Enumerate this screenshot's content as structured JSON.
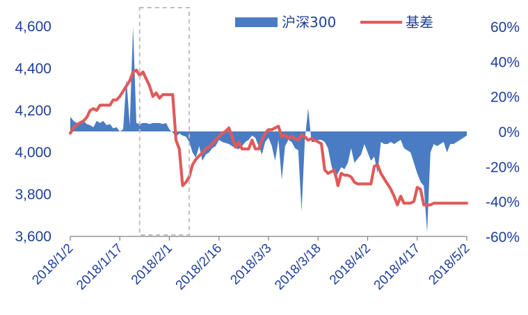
{
  "chart_data": {
    "type": "area+line",
    "title": "",
    "xlabel": "",
    "ylabel": "",
    "grid": false,
    "legend_position": "top-right",
    "x_tick_labels": [
      "2018/1/2",
      "2018/1/17",
      "2018/2/1",
      "2018/2/16",
      "2018/3/3",
      "2018/3/18",
      "2018/4/2",
      "2018/4/17",
      "2018/5/2"
    ],
    "left_axis": {
      "ylim": [
        3600,
        4600
      ],
      "ticks": [
        "3,600",
        "3,800",
        "4,000",
        "4,200",
        "4,400",
        "4,600"
      ]
    },
    "right_axis": {
      "ylim": [
        -60,
        60
      ],
      "unit": "%",
      "ticks": [
        "-60%",
        "-40%",
        "-20%",
        "0%",
        "20%",
        "40%",
        "60%"
      ]
    },
    "series": [
      {
        "name": "沪深300",
        "type": "area",
        "axis": "left",
        "color": "#4a7cc4",
        "baseline": 4100,
        "x": [
          0,
          1,
          2,
          3,
          4,
          5,
          6,
          7,
          8,
          9,
          10,
          11,
          12,
          13,
          14,
          15,
          16,
          17,
          18,
          19,
          20,
          21,
          22,
          23,
          24,
          25,
          26,
          27,
          28,
          29,
          30,
          31,
          32,
          33,
          34,
          35,
          36,
          37,
          38,
          39,
          40,
          41,
          42,
          43,
          44,
          45,
          46,
          47,
          48,
          49,
          50,
          51,
          52,
          53,
          54,
          55,
          56,
          57,
          58,
          59,
          60,
          61,
          62,
          63,
          64,
          65,
          66,
          67,
          68,
          69,
          70,
          71,
          72,
          73,
          74,
          75,
          76,
          77,
          78,
          79,
          80,
          81,
          82,
          83,
          84,
          85,
          86,
          87,
          88,
          89,
          90,
          91,
          92,
          93,
          94,
          95,
          96,
          97,
          98,
          99,
          100,
          101,
          102,
          103,
          104,
          105,
          106,
          107,
          108,
          109,
          110,
          111,
          112,
          113,
          114,
          115,
          116,
          117,
          118,
          119,
          120
        ],
        "values": [
          4170,
          4150,
          4140,
          4140,
          4150,
          4135,
          4130,
          4120,
          4150,
          4140,
          4150,
          4130,
          4135,
          4115,
          4120,
          4100,
          4110,
          4350,
          4130,
          4600,
          4140,
          4135,
          4140,
          4140,
          4135,
          4140,
          4140,
          4140,
          4135,
          4140,
          4110,
          4095,
          4075,
          4090,
          4080,
          4075,
          4050,
          4000,
          3975,
          4030,
          3960,
          3990,
          4000,
          4020,
          4030,
          4060,
          4050,
          4045,
          4040,
          4030,
          4020,
          4015,
          4030,
          4050,
          4060,
          4080,
          4070,
          4030,
          3990,
          4050,
          4070,
          4030,
          3960,
          4060,
          3870,
          4030,
          4060,
          4050,
          4020,
          4010,
          3720,
          4060,
          4210,
          4050,
          4050,
          4060,
          4060,
          4050,
          4020,
          3940,
          3880,
          3900,
          3930,
          3920,
          3950,
          4020,
          3950,
          3970,
          3990,
          4040,
          4000,
          3960,
          3980,
          3900,
          4050,
          4040,
          4040,
          4050,
          4040,
          4050,
          4060,
          4020,
          4010,
          4000,
          3950,
          3900,
          3860,
          3840,
          3620,
          4000,
          4040,
          4030,
          4040,
          4050,
          4000,
          4040,
          4040,
          4050,
          4060,
          4070,
          4080
        ]
      },
      {
        "name": "基差",
        "type": "line",
        "axis": "right",
        "color": "#e05a5a",
        "x": [
          0,
          1,
          2,
          3,
          4,
          5,
          6,
          7,
          8,
          9,
          10,
          11,
          12,
          13,
          14,
          15,
          16,
          17,
          18,
          19,
          20,
          21,
          22,
          23,
          24,
          25,
          26,
          27,
          28,
          29,
          30,
          31,
          32,
          33,
          34,
          35,
          36,
          37,
          38,
          39,
          40,
          41,
          42,
          43,
          44,
          45,
          46,
          47,
          48,
          49,
          50,
          51,
          52,
          53,
          54,
          55,
          56,
          57,
          58,
          59,
          60,
          61,
          62,
          63,
          64,
          65,
          66,
          67,
          68,
          69,
          70,
          71,
          72,
          73,
          74,
          75,
          76,
          77,
          78,
          79,
          80,
          81,
          82,
          83,
          84,
          85,
          86,
          87,
          88,
          89,
          90,
          91,
          92,
          93,
          94,
          95,
          96,
          97,
          98,
          99,
          100,
          101,
          102,
          103,
          104,
          105,
          106,
          107,
          108,
          109,
          110,
          111,
          112,
          113,
          114,
          115,
          116,
          117,
          118,
          119,
          120
        ],
        "values": [
          -1,
          2,
          4,
          5,
          6,
          8,
          12,
          13,
          12,
          15,
          15,
          15,
          15,
          18,
          18,
          20,
          23,
          26,
          29,
          34,
          35,
          32,
          34,
          30,
          26,
          20,
          22,
          19,
          21,
          21,
          21,
          21,
          -5,
          -10,
          -31,
          -29,
          -26,
          -19,
          -16,
          -14,
          -12,
          -10,
          -9,
          -7,
          -5,
          -3,
          -1,
          0,
          2,
          -3,
          -9,
          -6,
          -10,
          -10,
          -10,
          -5,
          -10,
          -10,
          -5,
          -1,
          1,
          1,
          2,
          3,
          -3,
          -2,
          -4,
          -3,
          -4,
          -5,
          -2,
          -3,
          -5,
          -4,
          -5,
          -6,
          -7,
          -22,
          -24,
          -23,
          -22,
          -31,
          -24,
          -25,
          -25,
          -26,
          -29,
          -30,
          -30,
          -30,
          -30,
          -30,
          -20,
          -19,
          -24,
          -27,
          -30,
          -33,
          -37,
          -42,
          -37,
          -41,
          -41,
          -41,
          -40,
          -32,
          -33,
          -42,
          -42,
          -42,
          -41,
          -41,
          -41,
          -41,
          -41,
          -41,
          -41,
          -41,
          -41,
          -41,
          -41
        ]
      }
    ],
    "annotations": [
      {
        "type": "dashed-rectangle",
        "color": "#bfbfbf",
        "x_range": [
          21,
          36
        ]
      }
    ]
  }
}
